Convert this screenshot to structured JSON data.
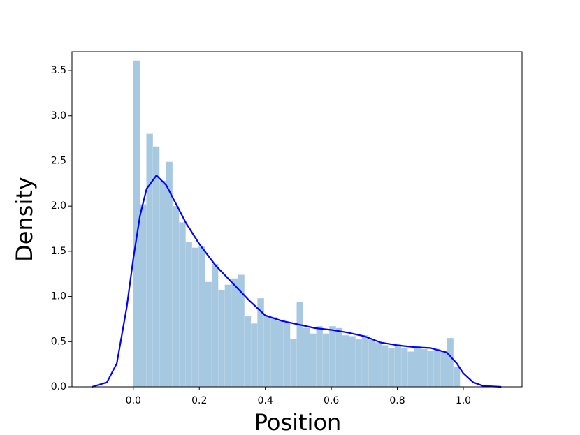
{
  "chart_data": {
    "type": "histogram",
    "x_label": "Position",
    "y_label": "Density",
    "bins": [
      0,
      0.0198,
      0.0396,
      0.0594,
      0.0792,
      0.099,
      0.1188,
      0.1386,
      0.1584,
      0.1782,
      0.198,
      0.2178,
      0.2376,
      0.2574,
      0.2772,
      0.297,
      0.3168,
      0.3366,
      0.3564,
      0.3762,
      0.396,
      0.4158,
      0.4356,
      0.4554,
      0.4752,
      0.495,
      0.5148,
      0.5346,
      0.5544,
      0.5742,
      0.594,
      0.6138,
      0.6336,
      0.6534,
      0.6732,
      0.693,
      0.7128,
      0.7326,
      0.7524,
      0.7722,
      0.792,
      0.8118,
      0.8316,
      0.8514,
      0.8712,
      0.891,
      0.9108,
      0.9306,
      0.9504,
      0.9702,
      0.99
    ],
    "values": [
      3.61,
      2.02,
      2.8,
      2.66,
      2.28,
      2.49,
      2.0,
      1.82,
      1.6,
      1.54,
      1.55,
      1.16,
      1.36,
      1.07,
      1.13,
      1.2,
      1.24,
      0.78,
      0.7,
      0.98,
      0.79,
      0.77,
      0.73,
      0.71,
      0.53,
      0.94,
      0.65,
      0.59,
      0.67,
      0.59,
      0.67,
      0.65,
      0.57,
      0.56,
      0.53,
      0.57,
      0.52,
      0.49,
      0.46,
      0.43,
      0.47,
      0.43,
      0.39,
      0.45,
      0.42,
      0.4,
      0.42,
      0.4,
      0.54,
      0.22
    ],
    "color": "#a6c8e0",
    "line": {
      "color": "#0000ff",
      "x": [
        -0.125,
        -0.08,
        -0.05,
        -0.02,
        0.0,
        0.02,
        0.04,
        0.07,
        0.1,
        0.13,
        0.16,
        0.2,
        0.25,
        0.3,
        0.35,
        0.4,
        0.45,
        0.5,
        0.55,
        0.6,
        0.65,
        0.7,
        0.75,
        0.8,
        0.85,
        0.9,
        0.95,
        0.98,
        1.0,
        1.03,
        1.06,
        1.115
      ],
      "values": [
        0.0,
        0.05,
        0.26,
        0.88,
        1.42,
        1.89,
        2.19,
        2.34,
        2.23,
        2.02,
        1.81,
        1.58,
        1.34,
        1.15,
        0.96,
        0.79,
        0.73,
        0.69,
        0.65,
        0.63,
        0.6,
        0.56,
        0.49,
        0.46,
        0.44,
        0.43,
        0.38,
        0.26,
        0.15,
        0.05,
        0.01,
        0.0
      ]
    },
    "xlim": [
      -0.186,
      1.178
    ],
    "ylim": [
      0,
      3.709
    ],
    "xticks": [
      {
        "value": 0,
        "label": "0.0"
      },
      {
        "value": 0.2,
        "label": "0.2"
      },
      {
        "value": 0.4,
        "label": "0.4"
      },
      {
        "value": 0.6,
        "label": "0.6"
      },
      {
        "value": 0.8,
        "label": "0.8"
      },
      {
        "value": 1,
        "label": "1.0"
      }
    ],
    "yticks": [
      {
        "value": 0,
        "label": "0.0"
      },
      {
        "value": 0.5,
        "label": "0.5"
      },
      {
        "value": 1,
        "label": "1.0"
      },
      {
        "value": 1.5,
        "label": "1.5"
      },
      {
        "value": 2,
        "label": "2.0"
      },
      {
        "value": 2.5,
        "label": "2.5"
      },
      {
        "value": 3,
        "label": "3.0"
      },
      {
        "value": 3.5,
        "label": "3.5"
      }
    ]
  }
}
